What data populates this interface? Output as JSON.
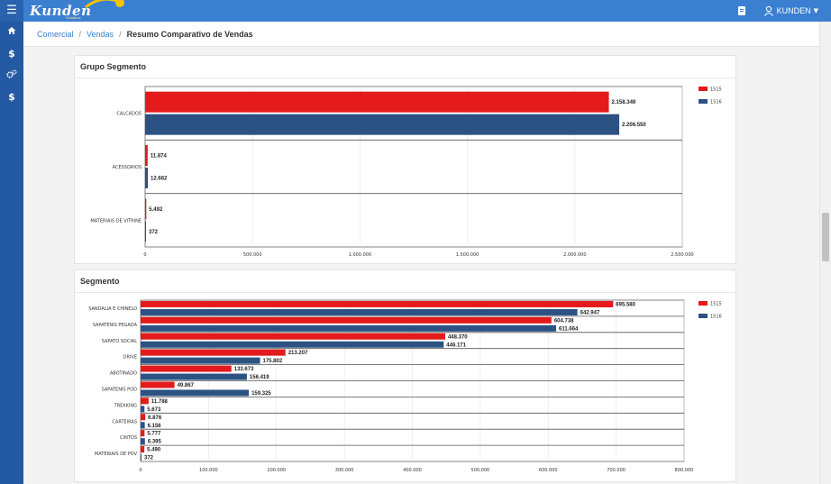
{
  "app": {
    "logo_text": "Kunden",
    "logo_sub": "Solutions",
    "user_name": "KUNDEN"
  },
  "breadcrumb": {
    "items": [
      "Comercial",
      "Vendas"
    ],
    "current": "Resumo Comparativo de Vendas"
  },
  "icons": {
    "menu": "hamburger-icon",
    "home": "home-icon",
    "dollar1": "dollar-icon",
    "gears": "gears-icon",
    "dollar2": "dollar-icon"
  },
  "colors": {
    "accent": "#3b7fd1",
    "sidebar": "#245aa3",
    "series_1515": "#e41a1c",
    "series_1516": "#2b5283"
  },
  "panels": [
    {
      "title": "Grupo Segmento",
      "chart_data": {
        "type": "bar",
        "orientation": "horizontal",
        "categories": [
          "CALCADOS",
          "ACESSORIOS",
          "MATERIAIS DE VITRINE"
        ],
        "series": [
          {
            "name": "1515",
            "values": [
              2158349,
              11874,
              5492
            ],
            "labels": [
              "2.158.349",
              "11.874",
              "5.492"
            ]
          },
          {
            "name": "1516",
            "values": [
              2206550,
              12662,
              372
            ],
            "labels": [
              "2.206.550",
              "12.662",
              "372"
            ]
          }
        ],
        "xlim": [
          0,
          2500000
        ],
        "ticks": [
          0,
          500000,
          1000000,
          1500000,
          2000000,
          2500000
        ],
        "tick_labels": [
          "0",
          "500.000",
          "1.000.000",
          "1.500.000",
          "2.000.000",
          "2.500.000"
        ],
        "legend": "top-right",
        "title": "",
        "xlabel": "",
        "ylabel": ""
      }
    },
    {
      "title": "Segmento",
      "chart_data": {
        "type": "bar",
        "orientation": "horizontal",
        "categories": [
          "SANDALIA E CHINELO",
          "SAPATENIS PEGADA",
          "SAPATO SOCIAL",
          "DRIVE",
          "ABOTINADO",
          "SAPATENIS POD",
          "TREKKING",
          "CARTEIRAS",
          "CINTOS",
          "MATERIAIS DE PDV"
        ],
        "series": [
          {
            "name": "1515",
            "values": [
              695580,
              604738,
              448370,
              213207,
              133673,
              49867,
              11788,
              6876,
              5777,
              5490
            ],
            "labels": [
              "695.580",
              "604.738",
              "448.370",
              "213.207",
              "133.673",
              "49.867",
              "11.788",
              "6.876",
              "5.777",
              "5.490"
            ]
          },
          {
            "name": "1516",
            "values": [
              642947,
              611664,
              446171,
              175802,
              156419,
              159325,
              5673,
              6156,
              6395,
              372
            ],
            "labels": [
              "642.947",
              "611.664",
              "446.171",
              "175.802",
              "156.419",
              "159.325",
              "5.673",
              "6.156",
              "6.395",
              "372"
            ]
          }
        ],
        "xlim": [
          0,
          800000
        ],
        "ticks": [
          0,
          100000,
          200000,
          300000,
          400000,
          500000,
          600000,
          700000,
          800000
        ],
        "tick_labels": [
          "0",
          "100.000",
          "200.000",
          "300.000",
          "400.000",
          "500.000",
          "600.000",
          "700.000",
          "800.000"
        ],
        "legend": "top-right",
        "title": "",
        "xlabel": "",
        "ylabel": ""
      }
    }
  ]
}
